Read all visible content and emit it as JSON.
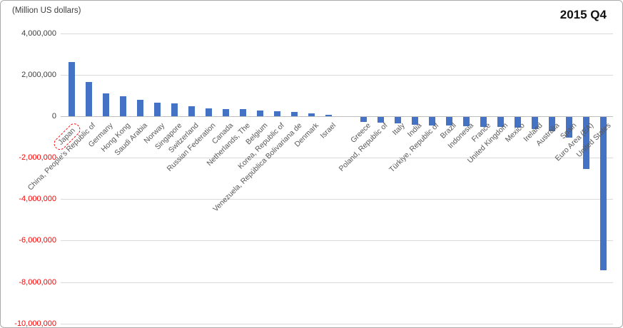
{
  "header": {
    "unit_label": "(Million US dollars)",
    "period_label": "2015 Q4"
  },
  "chart_data": {
    "type": "bar",
    "title": "",
    "xlabel": "",
    "ylabel": "(Million US dollars)",
    "legend": null,
    "grid": true,
    "bar_color": "#4472C4",
    "highlight_box_color": "#FF0000",
    "negative_tick_color": "#FF0000",
    "positive_tick_color": "#404040",
    "ylim": [
      -10000000,
      4000000
    ],
    "ytick_interval": 2000000,
    "yticks": [
      4000000,
      2000000,
      0,
      -2000000,
      -4000000,
      -6000000,
      -8000000,
      -10000000
    ],
    "highlighted_category": "Japan",
    "categories": [
      "Japan",
      "China, People's Republic of",
      "Germany",
      "Hong Kong",
      "Saudi Arabia",
      "Norway",
      "Singapore",
      "Switzerland",
      "Russian Federation",
      "Canada",
      "Netherlands, The",
      "Belgium",
      "Korea, Republic of",
      "Venezuela, República Bolivariana de",
      "Denmark",
      "Israel",
      "",
      "Greece",
      "Poland, Republic of",
      "Italy",
      "India",
      "Türkiye, Republic of",
      "Brazil",
      "Indonesia",
      "France",
      "United Kingdom",
      "Mexico",
      "Ireland",
      "Australia",
      "Spain",
      "Euro Area (EA)",
      "United States"
    ],
    "values": [
      2600000,
      1650000,
      1100000,
      950000,
      780000,
      670000,
      630000,
      490000,
      370000,
      360000,
      330000,
      280000,
      250000,
      190000,
      150000,
      80000,
      0,
      -230000,
      -280000,
      -320000,
      -370000,
      -400000,
      -420000,
      -440000,
      -470000,
      -490000,
      -520000,
      -570000,
      -700000,
      -1000000,
      -2500000,
      -7400000
    ]
  }
}
